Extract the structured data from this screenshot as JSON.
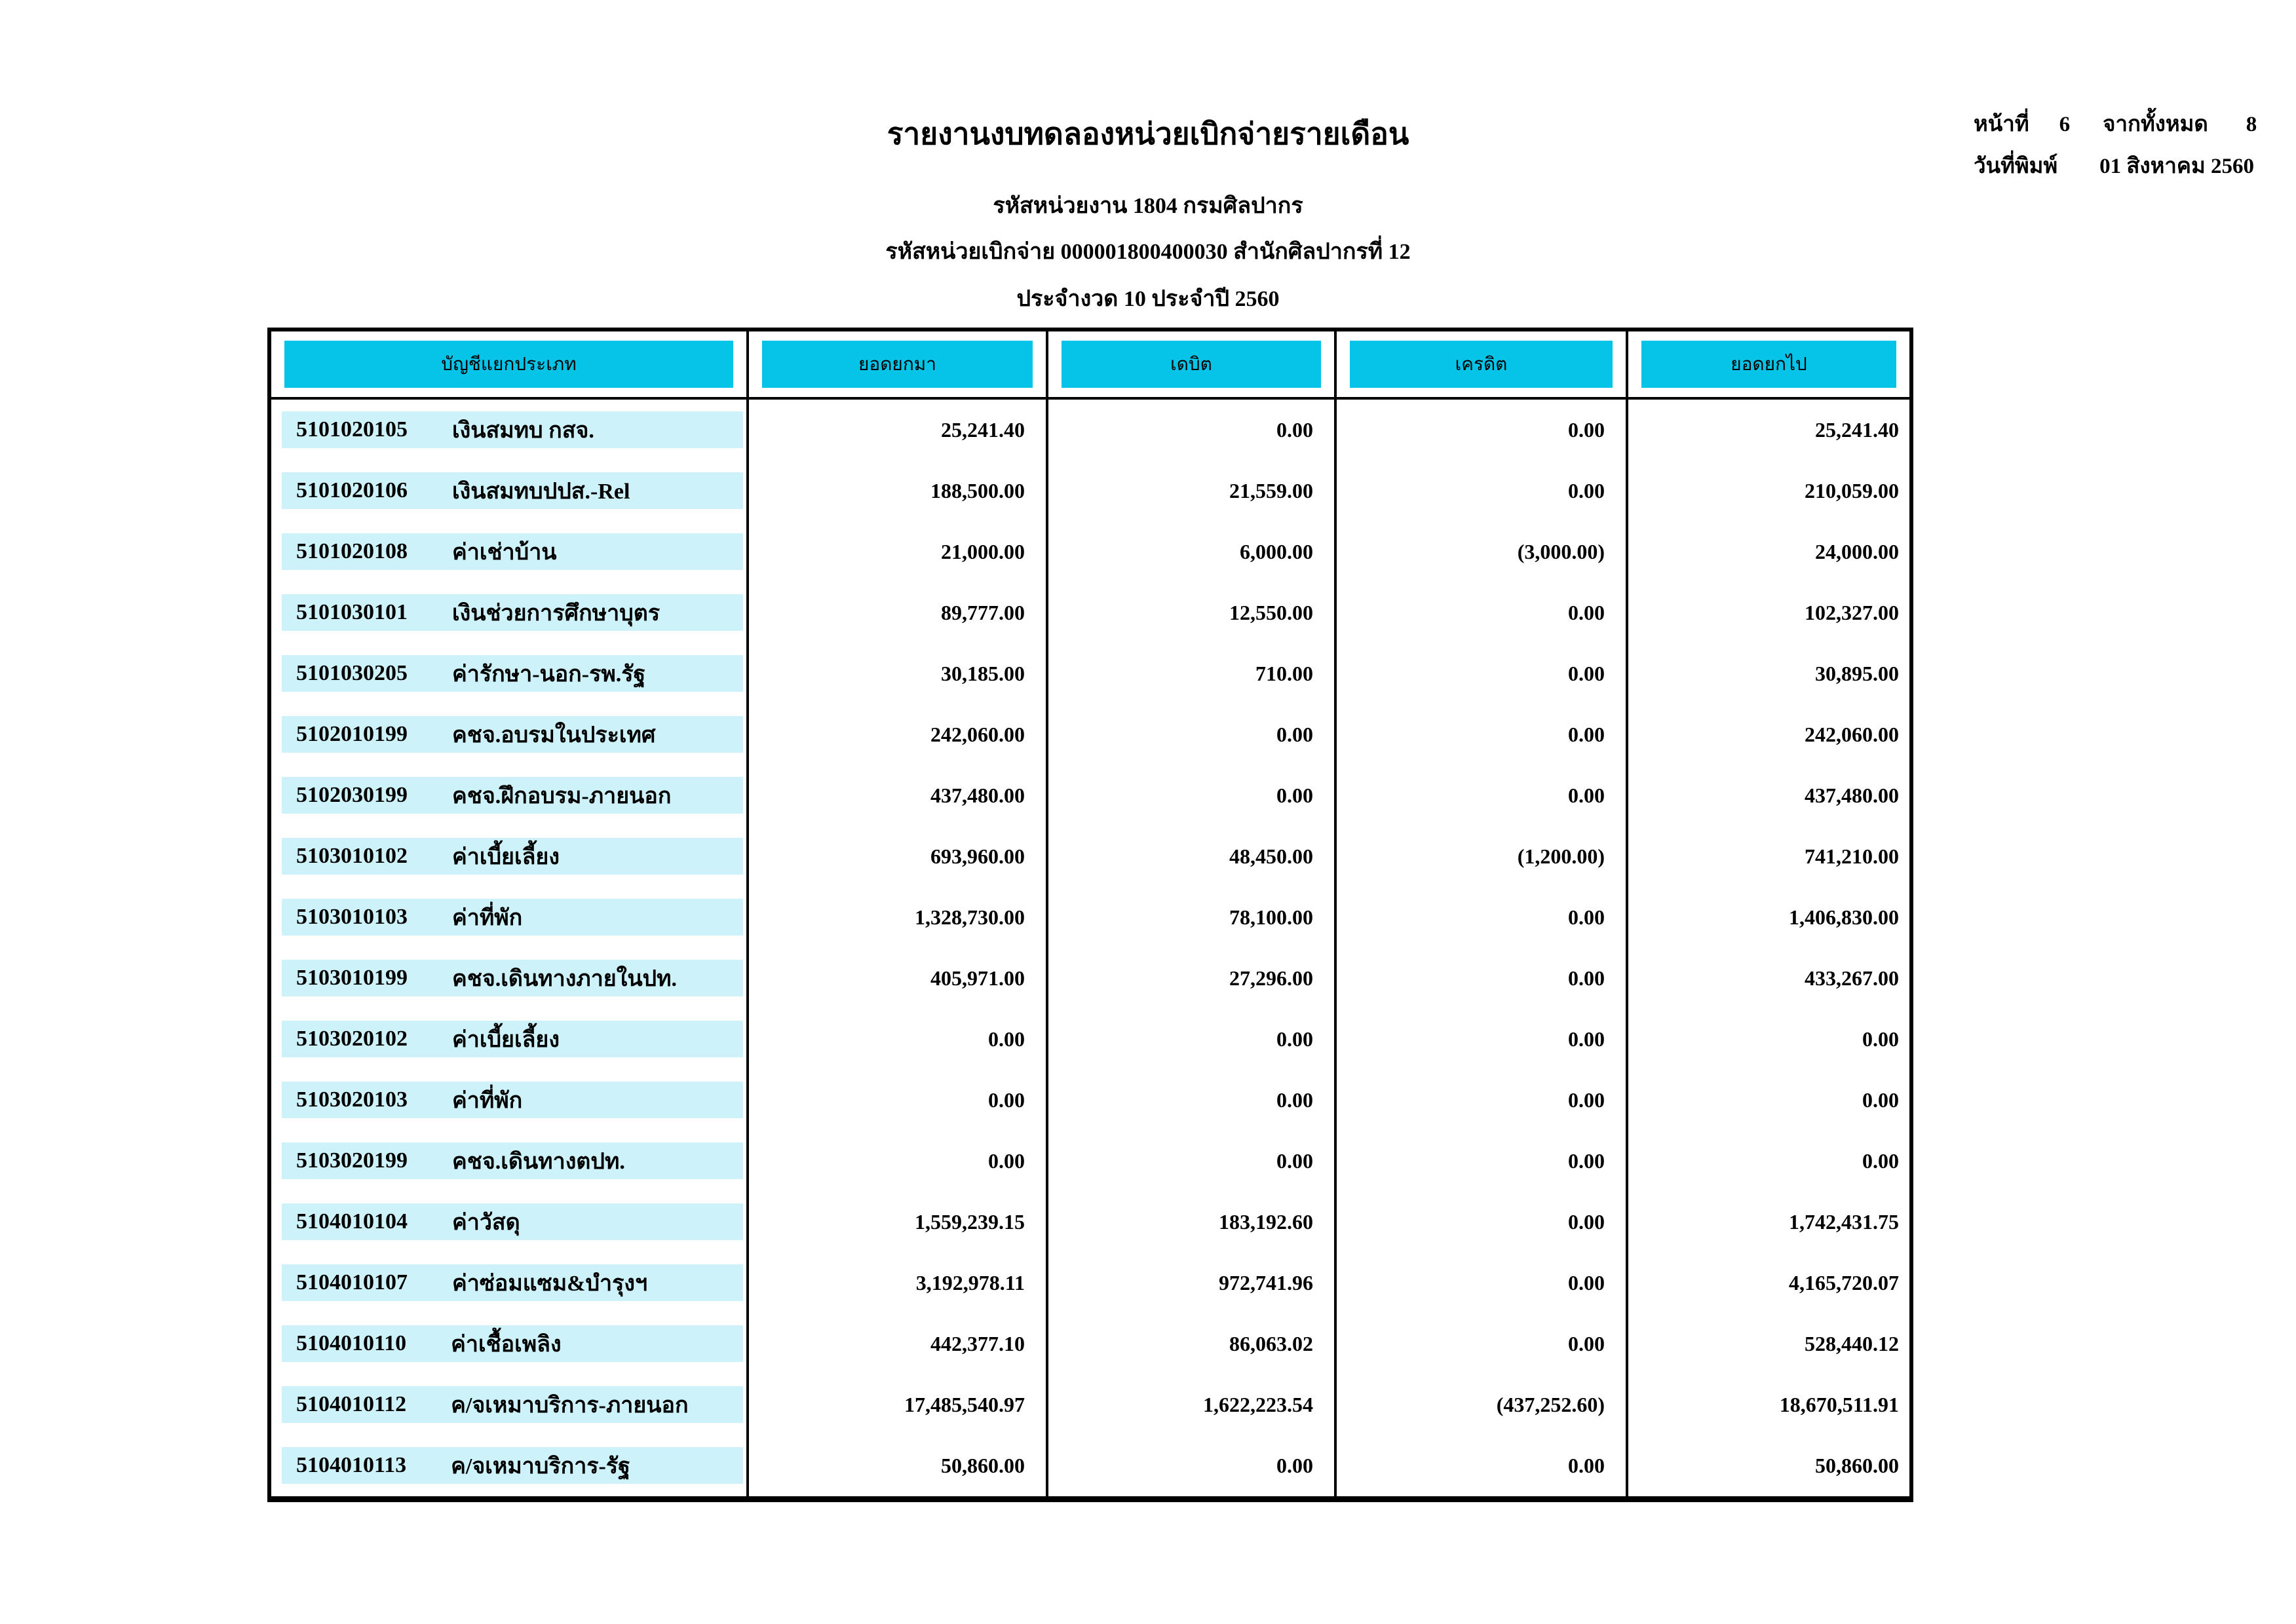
{
  "page": {
    "title": "รายงานงบทดลองหน่วยเบิกจ่ายรายเดือน",
    "agency_line": "รหัสหน่วยงาน 1804 กรมศิลปากร",
    "unit_line": "รหัสหน่วยเบิกจ่าย 000001800400030 สำนักศิลปากรที่ 12",
    "period_line": "ประจำงวด 10 ประจำปี 2560",
    "page_label": "หน้าที่",
    "page_number": "6",
    "of_label": "จากทั้งหมด",
    "total_pages": "8",
    "print_date_label": "วันที่พิมพ์",
    "print_date": "01 สิงหาคม 2560"
  },
  "colors": {
    "header_fill": "#06c3e8",
    "row_band_fill": "#cdf2fa",
    "border": "#000000"
  },
  "table": {
    "columns": [
      "บัญชีแยกประเภท",
      "ยอดยกมา",
      "เดบิต",
      "เครดิต",
      "ยอดยกไป"
    ],
    "rows": [
      {
        "code": "5101020105",
        "name": "เงินสมทบ กสจ.",
        "brought_forward": "25,241.40",
        "debit": "0.00",
        "credit": "0.00",
        "carried_forward": "25,241.40"
      },
      {
        "code": "5101020106",
        "name": "เงินสมทบปปส.-Rel",
        "brought_forward": "188,500.00",
        "debit": "21,559.00",
        "credit": "0.00",
        "carried_forward": "210,059.00"
      },
      {
        "code": "5101020108",
        "name": "ค่าเช่าบ้าน",
        "brought_forward": "21,000.00",
        "debit": "6,000.00",
        "credit": "(3,000.00)",
        "carried_forward": "24,000.00"
      },
      {
        "code": "5101030101",
        "name": "เงินช่วยการศึกษาบุตร",
        "brought_forward": "89,777.00",
        "debit": "12,550.00",
        "credit": "0.00",
        "carried_forward": "102,327.00"
      },
      {
        "code": "5101030205",
        "name": "ค่ารักษา-นอก-รพ.รัฐ",
        "brought_forward": "30,185.00",
        "debit": "710.00",
        "credit": "0.00",
        "carried_forward": "30,895.00"
      },
      {
        "code": "5102010199",
        "name": "คชจ.อบรมในประเทศ",
        "brought_forward": "242,060.00",
        "debit": "0.00",
        "credit": "0.00",
        "carried_forward": "242,060.00"
      },
      {
        "code": "5102030199",
        "name": "คชจ.ฝึกอบรม-ภายนอก",
        "brought_forward": "437,480.00",
        "debit": "0.00",
        "credit": "0.00",
        "carried_forward": "437,480.00"
      },
      {
        "code": "5103010102",
        "name": "ค่าเบี้ยเลี้ยง",
        "brought_forward": "693,960.00",
        "debit": "48,450.00",
        "credit": "(1,200.00)",
        "carried_forward": "741,210.00"
      },
      {
        "code": "5103010103",
        "name": "ค่าที่พัก",
        "brought_forward": "1,328,730.00",
        "debit": "78,100.00",
        "credit": "0.00",
        "carried_forward": "1,406,830.00"
      },
      {
        "code": "5103010199",
        "name": "คชจ.เดินทางภายในปท.",
        "brought_forward": "405,971.00",
        "debit": "27,296.00",
        "credit": "0.00",
        "carried_forward": "433,267.00"
      },
      {
        "code": "5103020102",
        "name": "ค่าเบี้ยเลี้ยง",
        "brought_forward": "0.00",
        "debit": "0.00",
        "credit": "0.00",
        "carried_forward": "0.00"
      },
      {
        "code": "5103020103",
        "name": "ค่าที่พัก",
        "brought_forward": "0.00",
        "debit": "0.00",
        "credit": "0.00",
        "carried_forward": "0.00"
      },
      {
        "code": "5103020199",
        "name": "คชจ.เดินทางตปท.",
        "brought_forward": "0.00",
        "debit": "0.00",
        "credit": "0.00",
        "carried_forward": "0.00"
      },
      {
        "code": "5104010104",
        "name": "ค่าวัสดุ",
        "brought_forward": "1,559,239.15",
        "debit": "183,192.60",
        "credit": "0.00",
        "carried_forward": "1,742,431.75"
      },
      {
        "code": "5104010107",
        "name": "ค่าซ่อมแซม&บำรุงฯ",
        "brought_forward": "3,192,978.11",
        "debit": "972,741.96",
        "credit": "0.00",
        "carried_forward": "4,165,720.07"
      },
      {
        "code": "5104010110",
        "name": "ค่าเชื้อเพลิง",
        "brought_forward": "442,377.10",
        "debit": "86,063.02",
        "credit": "0.00",
        "carried_forward": "528,440.12"
      },
      {
        "code": "5104010112",
        "name": "ค/จเหมาบริการ-ภายนอก",
        "brought_forward": "17,485,540.97",
        "debit": "1,622,223.54",
        "credit": "(437,252.60)",
        "carried_forward": "18,670,511.91"
      },
      {
        "code": "5104010113",
        "name": "ค/จเหมาบริการ-รัฐ",
        "brought_forward": "50,860.00",
        "debit": "0.00",
        "credit": "0.00",
        "carried_forward": "50,860.00"
      }
    ]
  }
}
